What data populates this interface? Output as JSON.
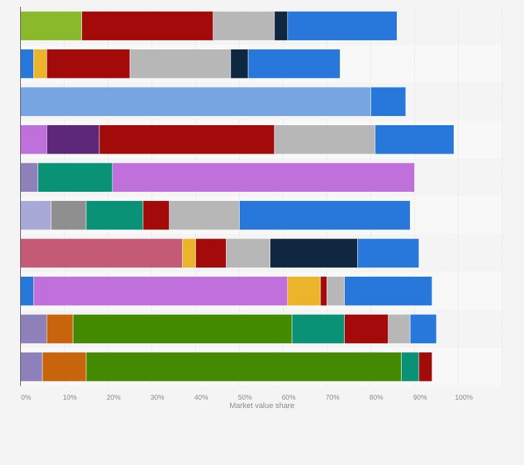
{
  "chart_data": {
    "type": "bar",
    "orientation": "horizontal",
    "stacked": true,
    "xlabel": "Market value share",
    "xlim": [
      0,
      110
    ],
    "x_ticks": [
      0,
      10,
      20,
      30,
      40,
      50,
      60,
      70,
      80,
      90,
      100
    ],
    "x_tick_labels": [
      "0%",
      "10%",
      "20%",
      "30%",
      "40%",
      "50%",
      "60%",
      "70%",
      "80%",
      "90%",
      "100%"
    ],
    "grid": true,
    "legend": "none",
    "rows": [
      {
        "segments": [
          {
            "value": 14,
            "color": "#8aba2c"
          },
          {
            "value": 30,
            "color": "#a30b0b"
          },
          {
            "value": 14,
            "color": "#b7b7b7"
          },
          {
            "value": 3,
            "color": "#102742"
          },
          {
            "value": 25,
            "color": "#2878dc"
          }
        ]
      },
      {
        "segments": [
          {
            "value": 3,
            "color": "#2878dc"
          },
          {
            "value": 3,
            "color": "#ecb42a"
          },
          {
            "value": 19,
            "color": "#a30b0b"
          },
          {
            "value": 23,
            "color": "#b7b7b7"
          },
          {
            "value": 4,
            "color": "#102742"
          },
          {
            "value": 21,
            "color": "#2878dc"
          }
        ]
      },
      {
        "segments": [
          {
            "value": 80,
            "color": "#76a5e2"
          },
          {
            "value": 8,
            "color": "#2878dc"
          }
        ]
      },
      {
        "segments": [
          {
            "value": 6,
            "color": "#c070da"
          },
          {
            "value": 12,
            "color": "#5d2878"
          },
          {
            "value": 40,
            "color": "#a30b0b"
          },
          {
            "value": 23,
            "color": "#b7b7b7"
          },
          {
            "value": 18,
            "color": "#2878dc"
          }
        ]
      },
      {
        "segments": [
          {
            "value": 4,
            "color": "#8e80b8"
          },
          {
            "value": 17,
            "color": "#0a9276"
          },
          {
            "value": 69,
            "color": "#c070da"
          }
        ]
      },
      {
        "segments": [
          {
            "value": 7,
            "color": "#a9a9d8"
          },
          {
            "value": 8,
            "color": "#8f8f8f"
          },
          {
            "value": 13,
            "color": "#0a9276"
          },
          {
            "value": 6,
            "color": "#a30b0b"
          },
          {
            "value": 16,
            "color": "#b7b7b7"
          },
          {
            "value": 39,
            "color": "#2878dc"
          }
        ]
      },
      {
        "segments": [
          {
            "value": 37,
            "color": "#c45a76"
          },
          {
            "value": 3,
            "color": "#ecb42a"
          },
          {
            "value": 7,
            "color": "#a30b0b"
          },
          {
            "value": 10,
            "color": "#b7b7b7"
          },
          {
            "value": 20,
            "color": "#102742"
          },
          {
            "value": 14,
            "color": "#2878dc"
          }
        ]
      },
      {
        "segments": [
          {
            "value": 3,
            "color": "#2878dc"
          },
          {
            "value": 58,
            "color": "#c070da"
          },
          {
            "value": 7.5,
            "color": "#ecb42a"
          },
          {
            "value": 1.5,
            "color": "#a30b0b"
          },
          {
            "value": 4,
            "color": "#b7b7b7"
          },
          {
            "value": 20,
            "color": "#2878dc"
          }
        ]
      },
      {
        "segments": [
          {
            "value": 6,
            "color": "#8e80b8"
          },
          {
            "value": 6,
            "color": "#c8640c"
          },
          {
            "value": 50,
            "color": "#448a00"
          },
          {
            "value": 12,
            "color": "#0a9276"
          },
          {
            "value": 10,
            "color": "#a30b0b"
          },
          {
            "value": 5,
            "color": "#b7b7b7"
          },
          {
            "value": 6,
            "color": "#2878dc"
          }
        ]
      },
      {
        "segments": [
          {
            "value": 5,
            "color": "#8e80b8"
          },
          {
            "value": 10,
            "color": "#c8640c"
          },
          {
            "value": 72,
            "color": "#448a00"
          },
          {
            "value": 4,
            "color": "#0a9276"
          },
          {
            "value": 3,
            "color": "#a30b0b"
          }
        ]
      }
    ]
  }
}
